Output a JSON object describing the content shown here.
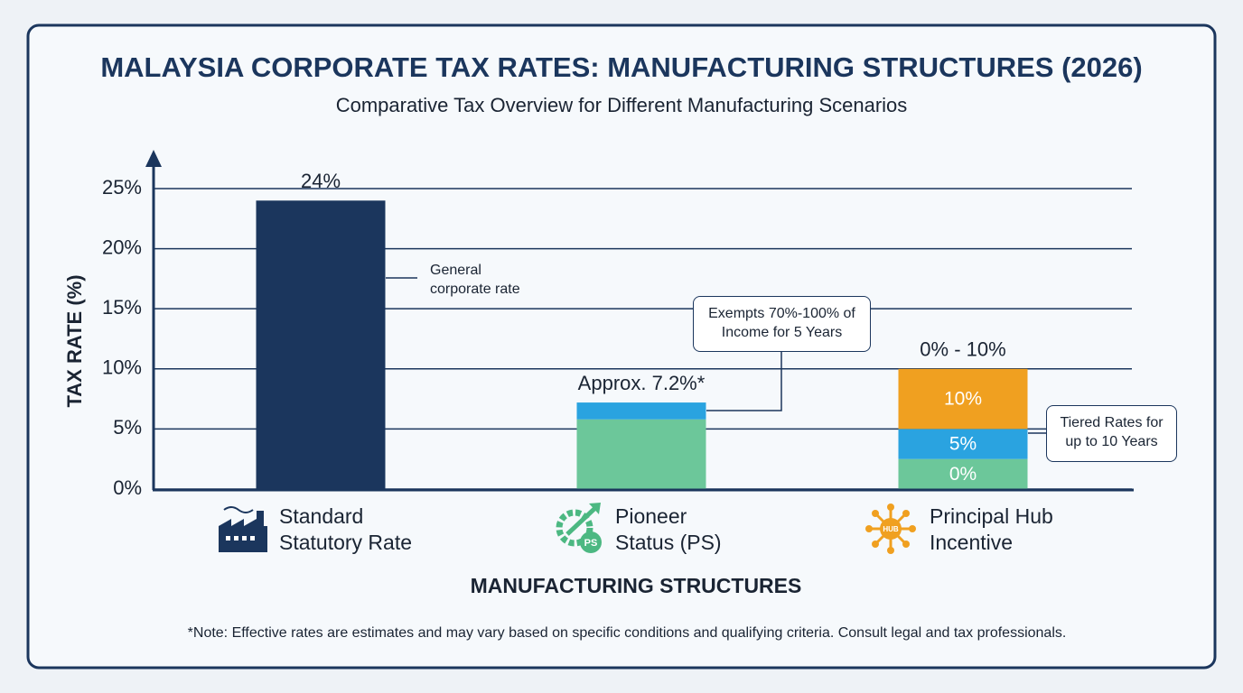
{
  "chart_data": {
    "type": "bar",
    "title": "MALAYSIA CORPORATE TAX RATES: MANUFACTURING STRUCTURES (2026)",
    "subtitle": "Comparative Tax Overview for Different Manufacturing Scenarios",
    "x_label": "MANUFACTURING STRUCTURES",
    "y_label": "TAX RATE (%)",
    "note": "*Note: Effective rates are estimates and may vary based on specific conditions and qualifying criteria. Consult legal and tax professionals.",
    "categories": [
      "Standard Statutory Rate",
      "Pioneer Status (PS)",
      "Principal Hub Incentive"
    ],
    "series": [
      {
        "color": "#1b365d",
        "values": [
          24,
          null,
          null
        ]
      },
      {
        "color": "#6cc79a",
        "values": [
          null,
          5.8,
          2.5
        ]
      },
      {
        "color": "#2aa3e0",
        "values": [
          null,
          1.4,
          2.5
        ]
      },
      {
        "color": "#f0a020",
        "values": [
          null,
          null,
          5
        ]
      }
    ],
    "bar_labels": [
      "24%",
      "Approx. 7.2%*",
      "0% - 10%"
    ],
    "segment_labels": [
      "0%",
      "5%",
      "10%"
    ],
    "annotations": [
      "General corporate rate",
      "Exempts 70%-100% of Income for 5 Years",
      "Tiered Rates for up to 10 Years"
    ],
    "ylim": [
      0,
      28
    ],
    "yticks": [
      {
        "value": 0,
        "label": "0%"
      },
      {
        "value": 5,
        "label": "5%"
      },
      {
        "value": 10,
        "label": "10%"
      },
      {
        "value": 15,
        "label": "15%"
      },
      {
        "value": 20,
        "label": "20%"
      },
      {
        "value": 25,
        "label": "25%"
      }
    ],
    "grid": true
  }
}
